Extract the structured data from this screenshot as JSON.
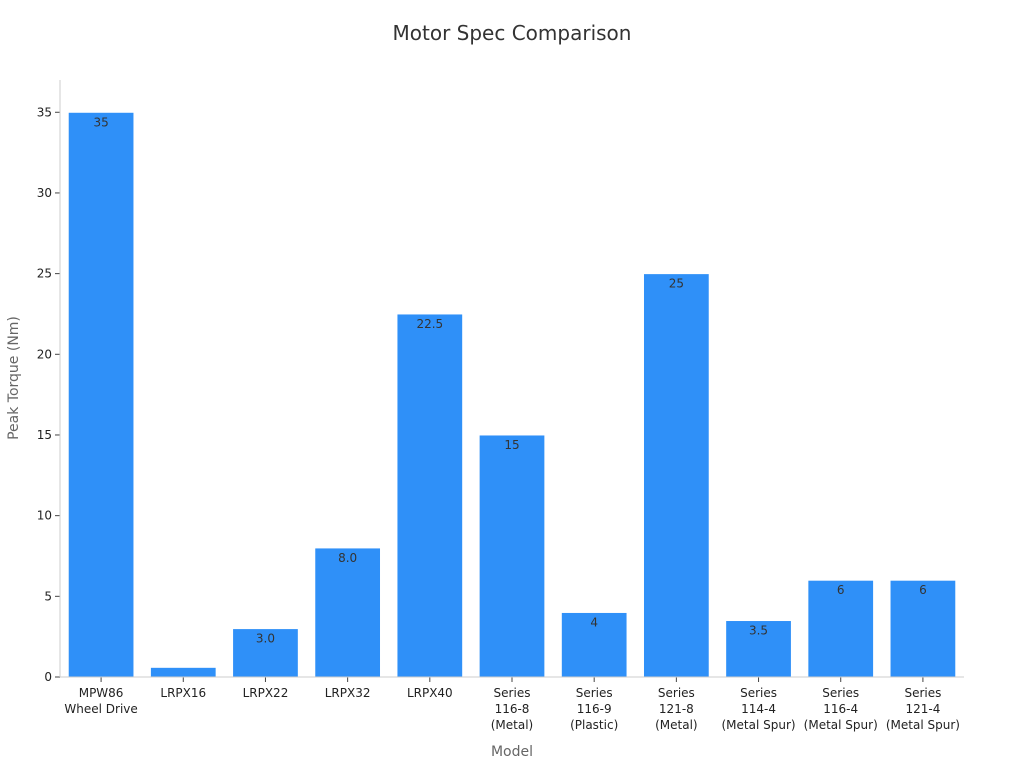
{
  "chart_data": {
    "type": "bar",
    "title": "Motor Spec Comparison",
    "xlabel": "Model",
    "ylabel": "Peak Torque (Nm)",
    "ylim": [
      0,
      37
    ],
    "yticks": [
      0,
      5,
      10,
      15,
      20,
      25,
      30,
      35
    ],
    "grid": false,
    "categories": [
      [
        "MPW86",
        "Wheel Drive"
      ],
      [
        "LRPX16"
      ],
      [
        "LRPX22"
      ],
      [
        "LRPX32"
      ],
      [
        "LRPX40"
      ],
      [
        "Series",
        "116-8",
        "(Metal)"
      ],
      [
        "Series",
        "116-9",
        "(Plastic)"
      ],
      [
        "Series",
        "121-8",
        "(Metal)"
      ],
      [
        "Series",
        "114-4",
        "(Metal Spur)"
      ],
      [
        "Series",
        "116-4",
        "(Metal Spur)"
      ],
      [
        "Series",
        "121-4",
        "(Metal Spur)"
      ]
    ],
    "values": [
      35,
      0.6,
      3.0,
      8.0,
      22.5,
      15,
      4,
      25,
      3.5,
      6,
      6
    ],
    "data_labels": [
      "35",
      "",
      "3.0",
      "8.0",
      "22.5",
      "15",
      "4",
      "25",
      "3.5",
      "6",
      "6"
    ],
    "bar_color": "#2f90f8"
  }
}
